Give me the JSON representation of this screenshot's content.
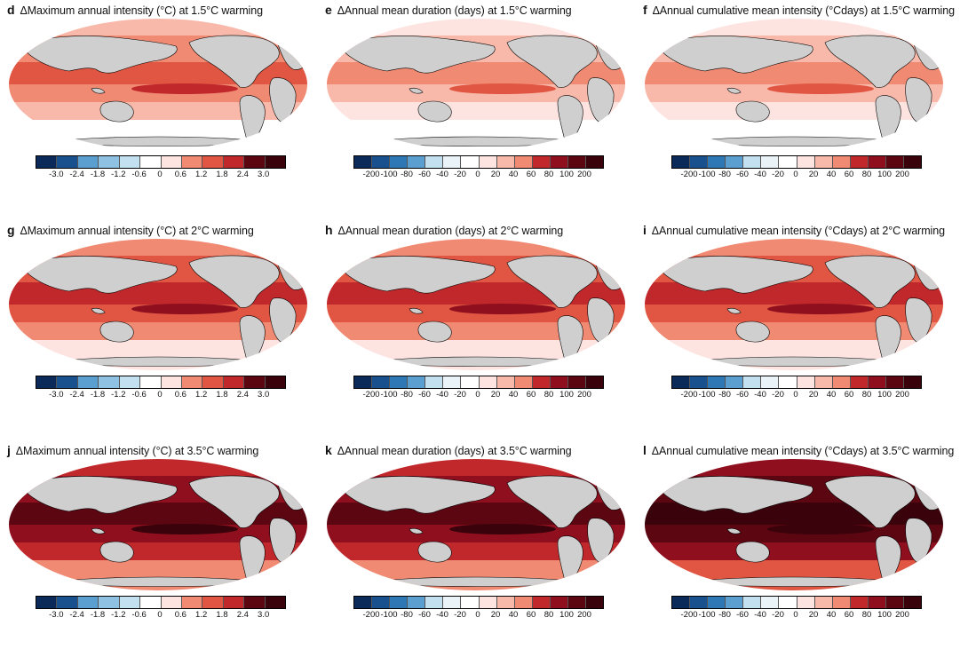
{
  "panels": [
    {
      "letter": "d",
      "title": "ΔMaximum annual intensity (°C) at 1.5°C warming",
      "scale": "div",
      "level": 2,
      "ticks": [
        "-3.0",
        "-2.4",
        "-1.8",
        "-1.2",
        "-0.6",
        "0",
        "0.6",
        "1.2",
        "1.8",
        "2.4",
        "3.0"
      ]
    },
    {
      "letter": "e",
      "title": "ΔAnnual mean duration (days) at 1.5°C warming",
      "scale": "div",
      "level": 1,
      "ticks": [
        "-200",
        "-100",
        "-80",
        "-60",
        "-40",
        "-20",
        "0",
        "20",
        "40",
        "60",
        "80",
        "100",
        "200"
      ]
    },
    {
      "letter": "f",
      "title": "ΔAnnual cumulative mean intensity (°Cdays) at 1.5°C warming",
      "scale": "div",
      "level": 1,
      "ticks": [
        "-200",
        "-100",
        "-80",
        "-60",
        "-40",
        "-20",
        "0",
        "20",
        "40",
        "60",
        "80",
        "100",
        "200"
      ]
    },
    {
      "letter": "g",
      "title": "ΔMaximum annual intensity (°C) at 2°C warming",
      "scale": "div",
      "level": 3,
      "ticks": [
        "-3.0",
        "-2.4",
        "-1.8",
        "-1.2",
        "-0.6",
        "0",
        "0.6",
        "1.2",
        "1.8",
        "2.4",
        "3.0"
      ]
    },
    {
      "letter": "h",
      "title": "ΔAnnual mean duration (days) at 2°C warming",
      "scale": "div",
      "level": 3,
      "ticks": [
        "-200",
        "-100",
        "-80",
        "-60",
        "-40",
        "-20",
        "0",
        "20",
        "40",
        "60",
        "80",
        "100",
        "200"
      ]
    },
    {
      "letter": "i",
      "title": "ΔAnnual cumulative mean intensity (°Cdays) at 2°C warming",
      "scale": "div",
      "level": 3,
      "ticks": [
        "-200",
        "-100",
        "-80",
        "-60",
        "-40",
        "-20",
        "0",
        "20",
        "40",
        "60",
        "80",
        "100",
        "200"
      ]
    },
    {
      "letter": "j",
      "title": "ΔMaximum annual intensity (°C) at 3.5°C warming",
      "scale": "div",
      "level": 5,
      "ticks": [
        "-3.0",
        "-2.4",
        "-1.8",
        "-1.2",
        "-0.6",
        "0",
        "0.6",
        "1.2",
        "1.8",
        "2.4",
        "3.0"
      ]
    },
    {
      "letter": "k",
      "title": "ΔAnnual mean duration (days) at 3.5°C warming",
      "scale": "div",
      "level": 5,
      "ticks": [
        "-200",
        "-100",
        "-80",
        "-60",
        "-40",
        "-20",
        "0",
        "20",
        "40",
        "60",
        "80",
        "100",
        "200"
      ]
    },
    {
      "letter": "l",
      "title": "ΔAnnual cumulative mean intensity (°Cdays) at 3.5°C warming",
      "scale": "div",
      "level": 6,
      "ticks": [
        "-200",
        "-100",
        "-80",
        "-60",
        "-40",
        "-20",
        "0",
        "20",
        "40",
        "60",
        "80",
        "100",
        "200"
      ]
    }
  ],
  "colors": {
    "land": "#cfcfcf",
    "ocean_base": "#ffeef0",
    "scale": [
      "#0b2a5a",
      "#19518f",
      "#2f78b6",
      "#5a9fd0",
      "#8fc2e2",
      "#c2e0ef",
      "#e9f3f8",
      "#ffffff",
      "#fde4e1",
      "#f8b9aa",
      "#f08a72",
      "#e05642",
      "#c0282b",
      "#8f0f1f",
      "#5c0612",
      "#3a030b"
    ]
  }
}
